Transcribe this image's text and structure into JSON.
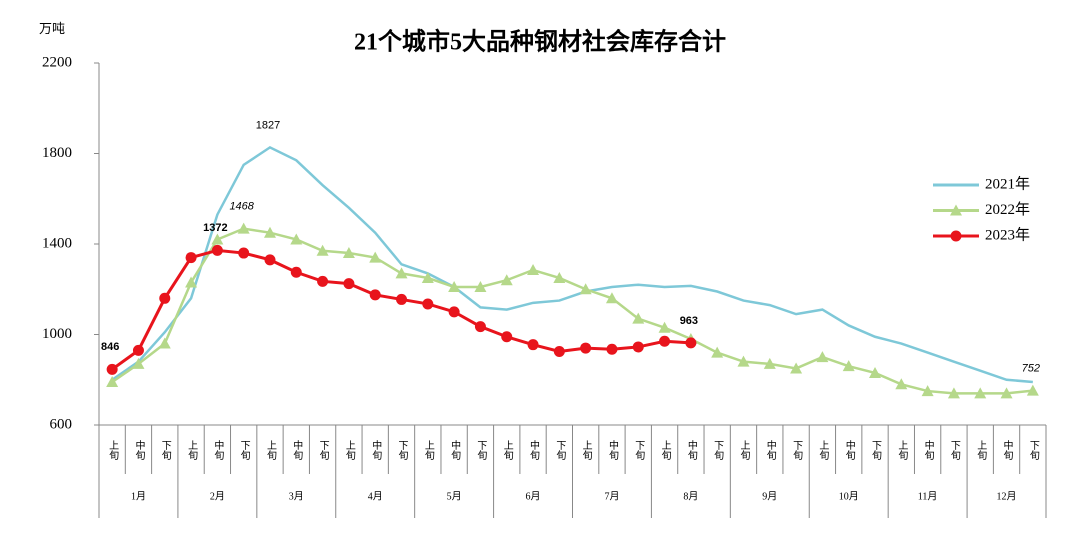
{
  "chart_data": {
    "type": "line",
    "title": "21个城市5大品种钢材社会库存合计",
    "y_unit": "万吨",
    "categories": [
      "上旬",
      "中旬",
      "下旬",
      "上旬",
      "中旬",
      "下旬",
      "上旬",
      "中旬",
      "下旬",
      "上旬",
      "中旬",
      "下旬",
      "上旬",
      "中旬",
      "下旬",
      "上旬",
      "中旬",
      "下旬",
      "上旬",
      "中旬",
      "下旬",
      "上旬",
      "中旬",
      "下旬",
      "上旬",
      "中旬",
      "下旬",
      "上旬",
      "中旬",
      "下旬",
      "上旬",
      "中旬",
      "下旬",
      "上旬",
      "中旬",
      "下旬"
    ],
    "groups": [
      "1月",
      "2月",
      "3月",
      "4月",
      "5月",
      "6月",
      "7月",
      "8月",
      "9月",
      "10月",
      "11月",
      "12月"
    ],
    "ylim": [
      600,
      2200
    ],
    "yticks": [
      600,
      1000,
      1400,
      1800,
      2200
    ],
    "legend": "right",
    "series": [
      {
        "name": "2021年",
        "color": "#7ec8d8",
        "marker": "none",
        "data_labels": [
          6
        ],
        "values": [
          800,
          880,
          1010,
          1160,
          1530,
          1750,
          1827,
          1770,
          1660,
          1560,
          1450,
          1310,
          1270,
          1210,
          1120,
          1110,
          1140,
          1150,
          1190,
          1210,
          1220,
          1210,
          1215,
          1190,
          1150,
          1130,
          1090,
          1110,
          1040,
          990,
          960,
          920,
          880,
          840,
          800,
          790
        ]
      },
      {
        "name": "2022年",
        "color": "#b5d88a",
        "marker": "triangle",
        "data_labels": [
          5,
          35
        ],
        "label_style": "italic",
        "values": [
          790,
          870,
          960,
          1230,
          1420,
          1468,
          1450,
          1420,
          1370,
          1360,
          1340,
          1270,
          1250,
          1210,
          1210,
          1240,
          1285,
          1250,
          1200,
          1160,
          1070,
          1030,
          980,
          920,
          880,
          870,
          850,
          900,
          860,
          830,
          780,
          750,
          740,
          740,
          740,
          752
        ]
      },
      {
        "name": "2023年",
        "color": "#e8141c",
        "marker": "circle",
        "data_labels": [
          0,
          4,
          22
        ],
        "label_style": "bold",
        "values": [
          846,
          930,
          1160,
          1340,
          1372,
          1360,
          1330,
          1275,
          1235,
          1225,
          1175,
          1155,
          1135,
          1100,
          1035,
          990,
          955,
          925,
          940,
          935,
          945,
          970,
          963,
          null,
          null,
          null,
          null,
          null,
          null,
          null,
          null,
          null,
          null,
          null,
          null,
          null
        ]
      }
    ]
  }
}
